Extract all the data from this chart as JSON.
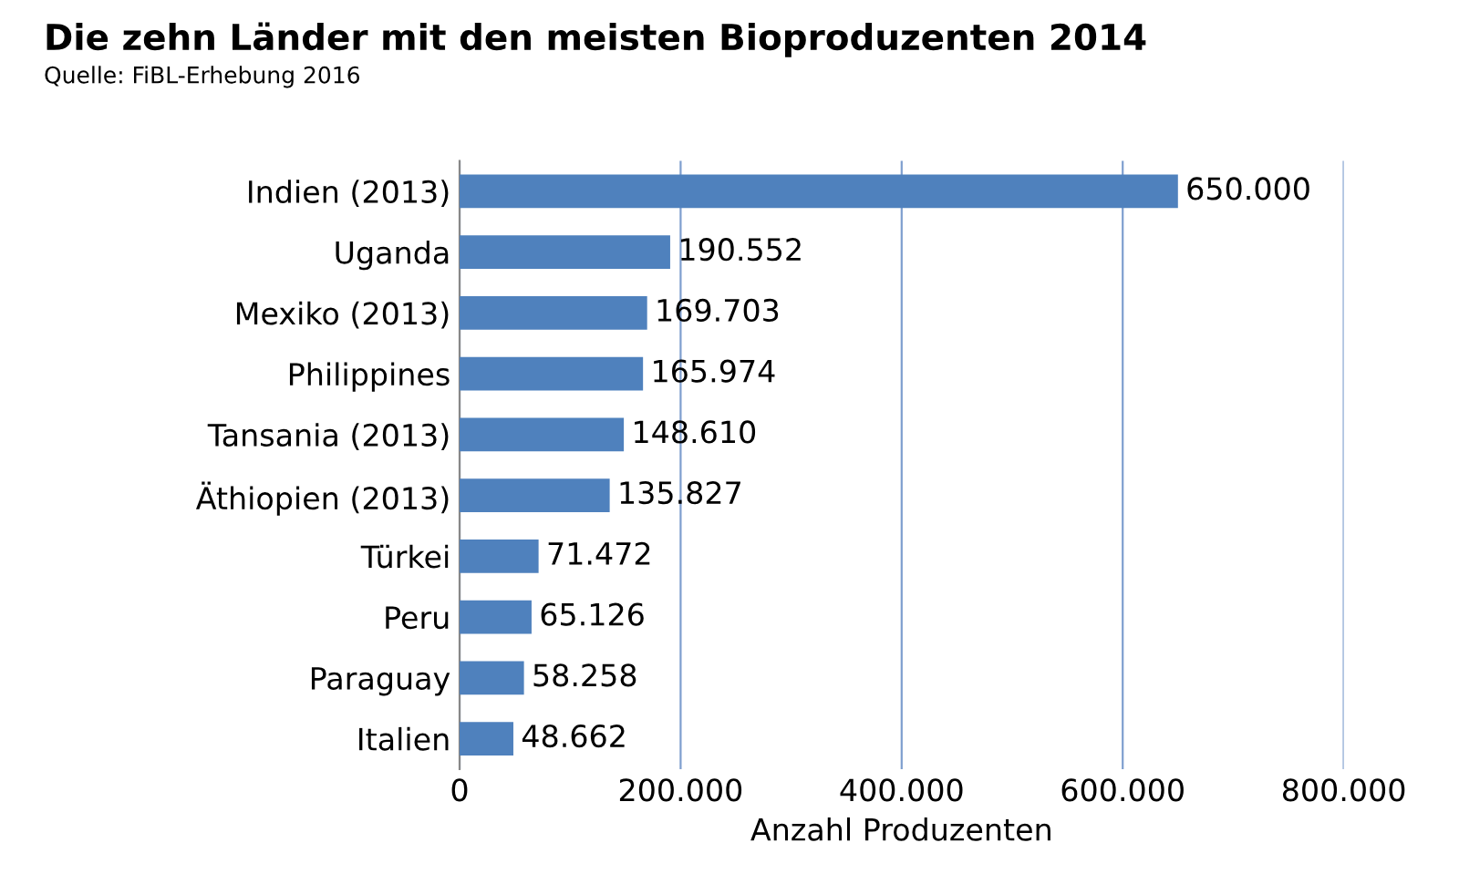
{
  "chart_data": {
    "type": "bar",
    "orientation": "horizontal",
    "title": "Die zehn Länder mit den meisten Bioproduzenten 2014",
    "subtitle": "Quelle: FiBL-Erhebung 2016",
    "xlabel": "Anzahl Produzenten",
    "categories": [
      "Indien (2013)",
      "Uganda",
      "Mexiko (2013)",
      "Philippines",
      "Tansania (2013)",
      "Äthiopien (2013)",
      "Türkei",
      "Peru",
      "Paraguay",
      "Italien"
    ],
    "values": [
      650000,
      190552,
      169703,
      165974,
      148610,
      135827,
      71472,
      65126,
      58258,
      48662
    ],
    "value_labels": [
      "650.000",
      "190.552",
      "169.703",
      "165.974",
      "148.610",
      "135.827",
      "71.472",
      "65.126",
      "58.258",
      "48.662"
    ],
    "color": "#4f81bd",
    "xlim": [
      0,
      800000
    ],
    "xticks": [
      0,
      {
        "value": 200000,
        "label": "200.000"
      },
      {
        "value": 400000,
        "label": "400.000"
      },
      {
        "value": 600000,
        "label": "600.000"
      },
      {
        "value": 800000,
        "label": "800.000"
      }
    ],
    "grid": "x"
  }
}
